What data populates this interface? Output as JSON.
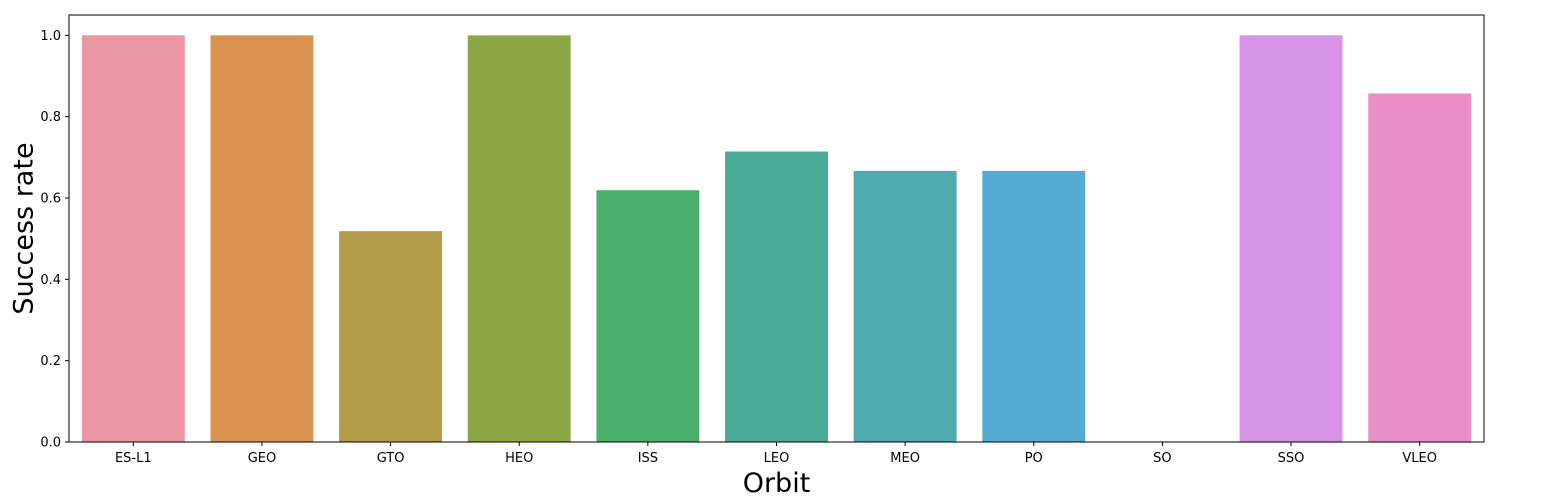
{
  "chart_data": {
    "type": "bar",
    "title": "",
    "xlabel": "Orbit",
    "ylabel": "Success rate",
    "categories": [
      "ES-L1",
      "GEO",
      "GTO",
      "HEO",
      "ISS",
      "LEO",
      "MEO",
      "PO",
      "SO",
      "SSO",
      "VLEO"
    ],
    "values": [
      1.0,
      1.0,
      0.5185,
      1.0,
      0.619,
      0.7143,
      0.6667,
      0.6667,
      0.0,
      1.0,
      0.8571
    ],
    "colors": [
      "#ea96a3",
      "#db914f",
      "#b39c47",
      "#8da645",
      "#4aaf6a",
      "#4aab96",
      "#4eabb0",
      "#53abd1",
      "#b7a5ec",
      "#d694e7",
      "#e98fc8"
    ],
    "ylim": [
      0,
      1.05
    ],
    "yticks": [
      "0.0",
      "0.2",
      "0.4",
      "0.6",
      "0.8",
      "1.0"
    ],
    "grid": false,
    "legend": "none"
  }
}
